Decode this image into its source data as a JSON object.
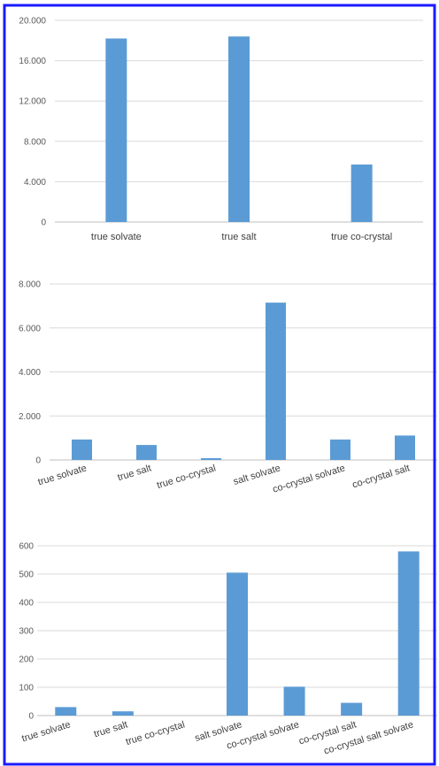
{
  "chart_data": [
    {
      "type": "bar",
      "categories": [
        "true solvate",
        "true salt",
        "true co-crystal"
      ],
      "values": [
        18200,
        18400,
        5700
      ],
      "ylim": [
        0,
        20000
      ],
      "yticks": [
        "0",
        "4.000",
        "8.000",
        "12.000",
        "16.000",
        "20.000"
      ],
      "grid": true,
      "legend": "none"
    },
    {
      "type": "bar",
      "categories": [
        "true solvate",
        "true salt",
        "true co-crystal",
        "salt solvate",
        "co-crystal solvate",
        "co-crystal salt"
      ],
      "values": [
        930,
        680,
        80,
        7150,
        930,
        1110
      ],
      "ylim": [
        0,
        8000
      ],
      "yticks": [
        "0",
        "2.000",
        "4.000",
        "6.000",
        "8.000"
      ],
      "grid": true,
      "legend": "none"
    },
    {
      "type": "bar",
      "categories": [
        "true solvate",
        "true salt",
        "true co-crystal",
        "salt solvate",
        "co-crystal solvate",
        "co-crystal salt",
        "co-crystal salt solvate"
      ],
      "values": [
        30,
        15,
        0,
        505,
        102,
        45,
        580
      ],
      "ylim": [
        0,
        600
      ],
      "yticks": [
        "0",
        "100",
        "200",
        "300",
        "400",
        "500",
        "600"
      ],
      "grid": true,
      "legend": "none"
    }
  ],
  "colors": {
    "bar": "#5b9bd5",
    "frame": "#1a1aff",
    "grid": "#d9d9d9",
    "axis": "#bfbfbf"
  }
}
